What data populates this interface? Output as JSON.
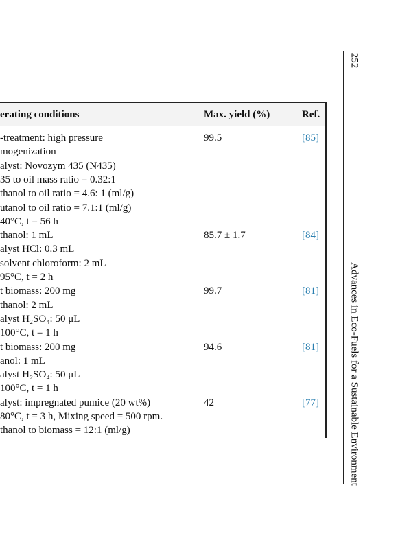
{
  "page_number": "252",
  "running_title": "Advances in Eco-Fuels for a Sustainable Environment",
  "table": {
    "header": [
      "erating conditions",
      "Max. yield (%)",
      "Ref."
    ],
    "rows": [
      {
        "conditions": [
          "-treatment: high pressure",
          "mogenization",
          "alyst: Novozym 435 (N435)",
          "35 to oil mass ratio = 0.32:1",
          "thanol to oil ratio = 4.6: 1 (ml/g)",
          "utanol to oil ratio = 7.1:1 (ml/g)",
          "40°C, t = 56 h"
        ],
        "yield": "99.5",
        "ref": "[85]"
      },
      {
        "conditions": [
          "thanol: 1 mL",
          "alyst HCl: 0.3 mL",
          "solvent chloroform: 2 mL",
          "95°C, t = 2 h"
        ],
        "yield": "85.7 ± 1.7",
        "ref": "[84]"
      },
      {
        "conditions": [
          "t biomass: 200 mg",
          "thanol: 2 mL",
          "alyst H₂SO₄: 50 μL",
          "100°C, t = 1 h"
        ],
        "yield": "99.7",
        "ref": "[81]"
      },
      {
        "conditions": [
          "t biomass: 200 mg",
          "anol: 1 mL",
          "alyst H₂SO₄: 50 μL",
          "100°C, t = 1 h"
        ],
        "yield": "94.6",
        "ref": "[81]"
      },
      {
        "conditions": [
          "alyst: impregnated pumice (20 wt%)",
          "80°C, t = 3 h, Mixing speed = 500 rpm.",
          "thanol to biomass = 12:1 (ml/g)"
        ],
        "yield": "42",
        "ref": "[77]"
      }
    ]
  }
}
